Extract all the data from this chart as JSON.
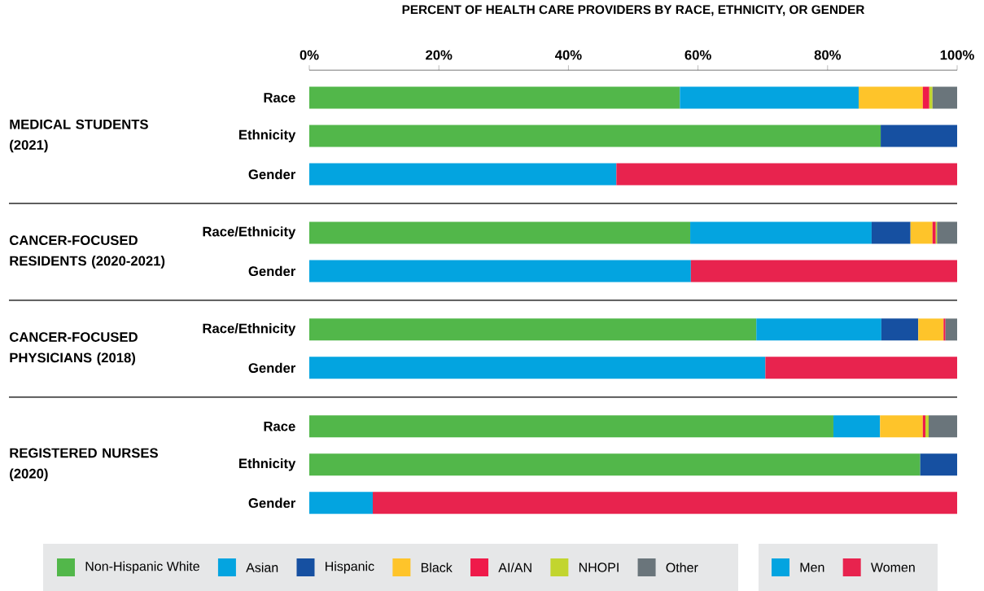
{
  "chart_data": {
    "type": "bar",
    "orientation": "horizontal",
    "stacked": true,
    "title": "PERCENT OF HEALTH CARE PROVIDERS BY RACE, ETHNICITY, OR GENDER",
    "categories": [
      "Race",
      "Ethnicity",
      "Gender",
      "Race/Ethnicity",
      "Gender",
      "Race/Ethnicity",
      "Gender",
      "Race",
      "Ethnicity",
      "Gender"
    ],
    "series": [
      {
        "name": "Non-Hispanic White",
        "color": "#52b74a",
        "values": [
          57.2,
          88.2,
          null,
          58.8,
          null,
          69.0,
          null,
          80.9,
          94.3,
          null
        ]
      },
      {
        "name": "Asian",
        "color": "#04a4e0",
        "values": [
          27.6,
          null,
          null,
          28.0,
          null,
          19.3,
          null,
          7.2,
          null,
          null
        ]
      },
      {
        "name": "Hispanic",
        "color": "#1650a1",
        "values": [
          null,
          11.8,
          null,
          6.0,
          null,
          5.7,
          null,
          null,
          5.7,
          null
        ]
      },
      {
        "name": "Black",
        "color": "#fec42a",
        "values": [
          9.9,
          null,
          null,
          3.4,
          null,
          3.9,
          null,
          6.6,
          null,
          null
        ]
      },
      {
        "name": "AI/AN",
        "color": "#ef1a4a",
        "values": [
          1.0,
          null,
          null,
          0.5,
          null,
          0.3,
          null,
          0.4,
          null,
          null
        ]
      },
      {
        "name": "NHOPI",
        "color": "#c2d52f",
        "values": [
          0.5,
          null,
          null,
          0.2,
          null,
          null,
          null,
          0.5,
          null,
          null
        ]
      },
      {
        "name": "Other",
        "color": "#6a757b",
        "values": [
          3.8,
          null,
          null,
          3.1,
          null,
          1.8,
          null,
          4.4,
          null,
          null
        ]
      },
      {
        "name": "Men",
        "color": "#03a4e0",
        "values": [
          null,
          null,
          47.4,
          null,
          58.9,
          null,
          70.4,
          null,
          null,
          9.8
        ]
      },
      {
        "name": "Women",
        "color": "#e8234e",
        "values": [
          null,
          null,
          52.6,
          null,
          41.1,
          null,
          29.6,
          null,
          null,
          90.2
        ]
      }
    ],
    "xlim": [
      0,
      100
    ],
    "xticks": [
      {
        "value": 0,
        "label": "0%"
      },
      {
        "value": 20,
        "label": "20%"
      },
      {
        "value": 40,
        "label": "40%"
      },
      {
        "value": 60,
        "label": "60%"
      },
      {
        "value": 80,
        "label": "80%"
      },
      {
        "value": 100,
        "label": "100%"
      }
    ],
    "annotations": [
      "MEDICAL STUDENTS (2021)",
      "CANCER-FOCUSED RESIDENTS (2020-2021)",
      "CANCER-FOCUSED PHYSICIANS (2018)",
      "REGISTERED NURSES (2020)"
    ],
    "legend": "bottom"
  }
}
